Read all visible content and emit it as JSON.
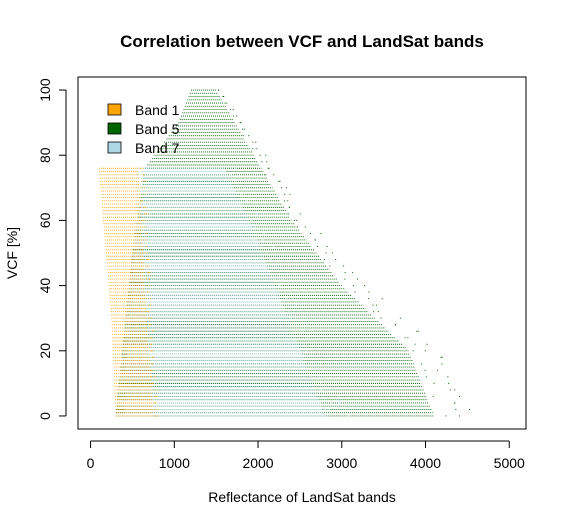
{
  "chart_data": {
    "type": "scatter",
    "title": "Correlation between VCF and LandSat bands",
    "xlabel": "Reflectance of LandSat bands",
    "ylabel": "VCF [%]",
    "xlim": [
      -150,
      5200
    ],
    "ylim": [
      -4,
      104
    ],
    "x_ticks": [
      "0",
      "1000",
      "2000",
      "3000",
      "4000",
      "5000"
    ],
    "y_ticks": [
      "0",
      "20",
      "40",
      "60",
      "80",
      "100"
    ],
    "grid": false,
    "legend_position": "top-left",
    "series": [
      {
        "name": "Band 5",
        "color": "#006400",
        "vcf_range": [
          0,
          100
        ],
        "x_min_by_vcf": [
          [
            0,
            300
          ],
          [
            50,
            500
          ],
          [
            76,
            650
          ],
          [
            90,
            1050
          ],
          [
            100,
            1200
          ]
        ],
        "x_max_by_vcf": [
          [
            0,
            4100
          ],
          [
            20,
            3800
          ],
          [
            40,
            3000
          ],
          [
            60,
            2400
          ],
          [
            80,
            1950
          ],
          [
            100,
            1500
          ]
        ]
      },
      {
        "name": "Band 7",
        "color": "#ADD8E6",
        "vcf_range": [
          0,
          76
        ],
        "x_min_by_vcf": [
          [
            0,
            400
          ],
          [
            40,
            500
          ],
          [
            76,
            550
          ]
        ],
        "x_max_by_vcf": [
          [
            0,
            2800
          ],
          [
            20,
            2500
          ],
          [
            40,
            2200
          ],
          [
            60,
            1900
          ],
          [
            76,
            1600
          ]
        ]
      },
      {
        "name": "Band 1",
        "color": "#FFA500",
        "vcf_range": [
          0,
          76
        ],
        "x_min_by_vcf": [
          [
            0,
            300
          ],
          [
            30,
            250
          ],
          [
            76,
            100
          ]
        ],
        "x_max_by_vcf": [
          [
            0,
            750
          ],
          [
            20,
            700
          ],
          [
            40,
            650
          ],
          [
            76,
            580
          ]
        ]
      }
    ]
  }
}
